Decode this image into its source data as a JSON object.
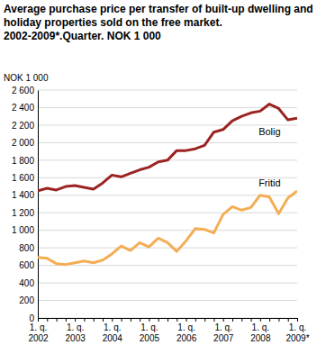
{
  "chart_data": {
    "type": "line",
    "title": "Average purchase price per transfer of built-up dwelling and holiday properties sold on the free market. 2002-2009*.Quarter. NOK 1 000",
    "y_label": "NOK 1 000",
    "categories": [
      "1. q. 2002",
      null,
      null,
      null,
      "1. q. 2003",
      null,
      null,
      null,
      "1. q. 2004",
      null,
      null,
      null,
      "1. q. 2005",
      null,
      null,
      null,
      "1. q. 2006",
      null,
      null,
      null,
      "1. q. 2007",
      null,
      null,
      null,
      "1. q. 2008",
      null,
      null,
      null,
      "1. q. 2009*"
    ],
    "series": [
      {
        "name": "Bolig",
        "color": "#9b2423",
        "values": [
          1450,
          1480,
          1460,
          1500,
          1510,
          1490,
          1470,
          1540,
          1630,
          1610,
          1650,
          1690,
          1720,
          1780,
          1800,
          1910,
          1910,
          1930,
          1970,
          2120,
          2150,
          2250,
          2300,
          2340,
          2360,
          2440,
          2390,
          2260,
          2280
        ]
      },
      {
        "name": "Fritid",
        "color": "#f3ae55",
        "values": [
          690,
          680,
          620,
          610,
          630,
          650,
          630,
          660,
          730,
          820,
          770,
          860,
          810,
          910,
          860,
          760,
          880,
          1020,
          1010,
          970,
          1180,
          1270,
          1230,
          1260,
          1400,
          1380,
          1190,
          1370,
          1450
        ]
      }
    ],
    "ylim": [
      0,
      2600
    ],
    "yticks": [
      {
        "value": 0,
        "label": "0"
      },
      {
        "value": 200,
        "label": "200"
      },
      {
        "value": 400,
        "label": "400"
      },
      {
        "value": 600,
        "label": "600"
      },
      {
        "value": 800,
        "label": "800"
      },
      {
        "value": 1000,
        "label": "1 000"
      },
      {
        "value": 1200,
        "label": "1 200"
      },
      {
        "value": 1400,
        "label": "1 400"
      },
      {
        "value": 1600,
        "label": "1 600"
      },
      {
        "value": 1800,
        "label": "1 800"
      },
      {
        "value": 2000,
        "label": "2 000"
      },
      {
        "value": 2200,
        "label": "2 200"
      },
      {
        "value": 2400,
        "label": "2 400"
      },
      {
        "value": 2600,
        "label": "2 600"
      }
    ],
    "grid": true
  }
}
